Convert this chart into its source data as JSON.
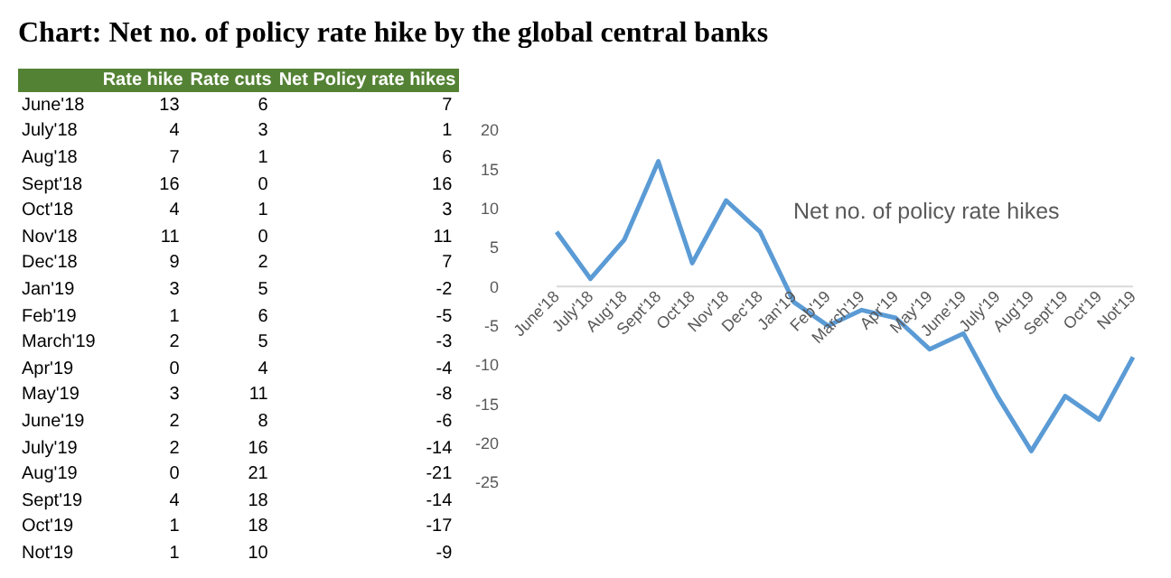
{
  "chart_data": [
    {
      "type": "other",
      "title": "Chart: Net no. of policy rate hike by the global central banks",
      "data_labels": true,
      "categories": [
        "June'18",
        "July'18",
        "Aug'18",
        "Sept'18",
        "Oct'18",
        "Nov'18",
        "Dec'18",
        "Jan'19",
        "Feb'19",
        "March'19",
        "Apr'19",
        "May'19",
        "June'19",
        "July'19",
        "Aug'19",
        "Sept'19",
        "Oct'19",
        "Not'19"
      ],
      "series": [
        {
          "name": "Rate hike",
          "values": [
            13,
            4,
            7,
            16,
            4,
            11,
            9,
            3,
            1,
            2,
            0,
            3,
            2,
            2,
            0,
            4,
            1,
            1
          ]
        },
        {
          "name": "Rate cuts",
          "values": [
            6,
            3,
            1,
            0,
            1,
            0,
            2,
            5,
            6,
            5,
            4,
            11,
            8,
            16,
            21,
            18,
            18,
            10
          ]
        },
        {
          "name": "Net Policy rate hikes",
          "values": [
            7,
            1,
            6,
            16,
            3,
            11,
            7,
            -2,
            -5,
            -3,
            -4,
            -8,
            -6,
            -14,
            -21,
            -14,
            -17,
            -9
          ]
        }
      ]
    },
    {
      "type": "line",
      "categories": [
        "June'18",
        "July'18",
        "Aug'18",
        "Sept'18",
        "Oct'18",
        "Nov'18",
        "Dec'18",
        "Jan'19",
        "Feb'19",
        "March'19",
        "Apr'19",
        "May'19",
        "June'19",
        "July'19",
        "Aug'19",
        "Sept'19",
        "Oct'19",
        "Not'19"
      ],
      "series": [
        {
          "name": "Net no. of policy rate hikes",
          "color": "#5b9bd5",
          "values": [
            7,
            1,
            6,
            16,
            3,
            11,
            7,
            -2,
            -5,
            -3,
            -4,
            -8,
            -6,
            -14,
            -21,
            -14,
            -17,
            -9
          ]
        }
      ],
      "ylim": [
        -25,
        20
      ],
      "yticks": [
        20,
        15,
        10,
        5,
        0,
        -5,
        -10,
        -15,
        -20,
        -25
      ],
      "grid": false,
      "legend": false
    }
  ]
}
